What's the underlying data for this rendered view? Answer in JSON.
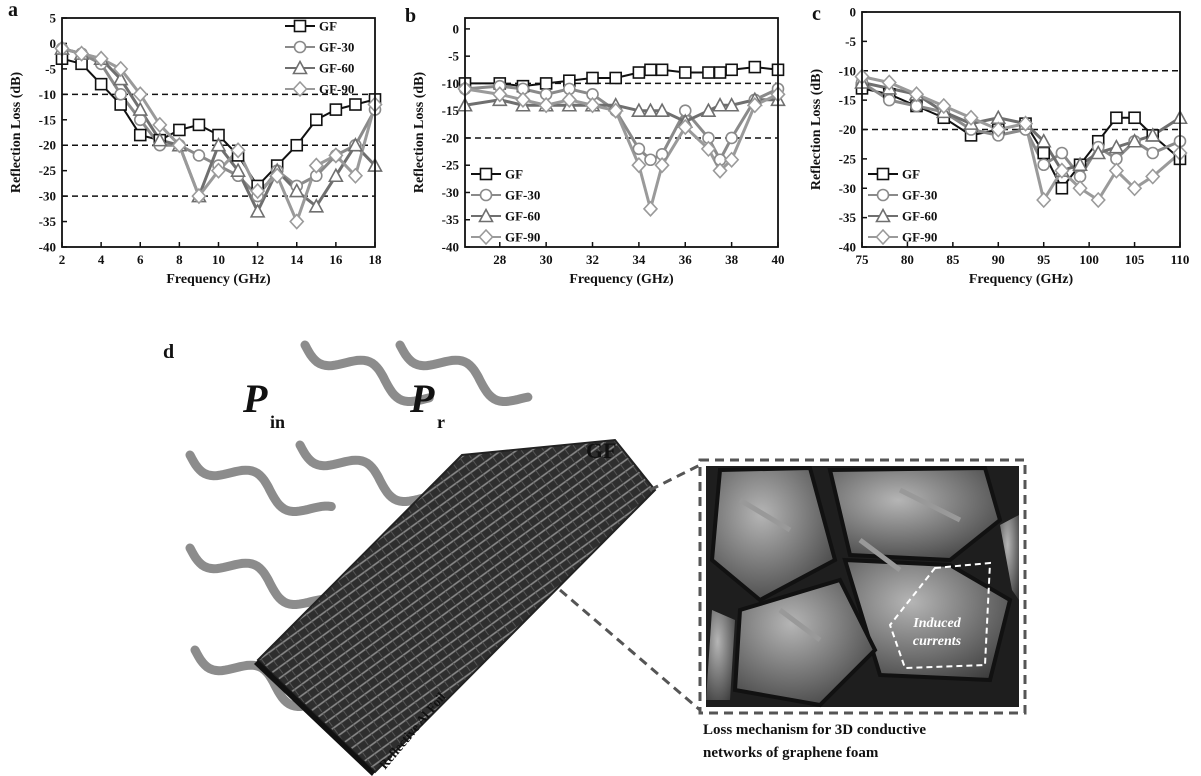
{
  "chart_data": [
    {
      "type": "line",
      "panel": "a",
      "xlabel": "Frequency (GHz)",
      "ylabel": "Reflection Loss (dB)",
      "x": [
        2,
        3,
        4,
        5,
        6,
        7,
        8,
        9,
        10,
        11,
        12,
        13,
        14,
        15,
        16,
        17,
        18
      ],
      "xlim": [
        2,
        18
      ],
      "xticks": [
        2,
        4,
        6,
        8,
        10,
        12,
        14,
        16,
        18
      ],
      "ylim": [
        -40,
        5
      ],
      "yticks": [
        -40,
        -35,
        -30,
        -25,
        -20,
        -15,
        -10,
        -5,
        0,
        5
      ],
      "ref_lines": [
        -10,
        -20,
        -30
      ],
      "legend": "upper right",
      "series": [
        {
          "name": "GF",
          "color": "#111111",
          "marker": "square",
          "values": [
            -3,
            -4,
            -8,
            -12,
            -18,
            -19,
            -17,
            -16,
            -18,
            -22,
            -28,
            -24,
            -20,
            -15,
            -13,
            -12,
            -11
          ]
        },
        {
          "name": "GF-30",
          "color": "#8a8a8a",
          "marker": "circle",
          "values": [
            -1,
            -2,
            -4,
            -10,
            -15,
            -20,
            -20,
            -22,
            -24,
            -26,
            -30,
            -25,
            -28,
            -26,
            -22,
            -20,
            -13
          ]
        },
        {
          "name": "GF-60",
          "color": "#6f6f6f",
          "marker": "triangle",
          "values": [
            -1,
            -2,
            -3,
            -7,
            -13,
            -19,
            -20,
            -30,
            -20,
            -25,
            -33,
            -25,
            -29,
            -32,
            -26,
            -20,
            -24
          ]
        },
        {
          "name": "GF-90",
          "color": "#9a9a9a",
          "marker": "diamond",
          "values": [
            -1,
            -2,
            -3,
            -5,
            -10,
            -16,
            -20,
            -30,
            -25,
            -21,
            -29,
            -26,
            -35,
            -24,
            -22,
            -26,
            -12
          ]
        }
      ]
    },
    {
      "type": "line",
      "panel": "b",
      "xlabel": "Frequency (GHz)",
      "ylabel": "Reflection Loss (dB)",
      "x": [
        26.5,
        28,
        29,
        30,
        31,
        32,
        33,
        34,
        34.5,
        35,
        36,
        37,
        37.5,
        38,
        39,
        40
      ],
      "xlim": [
        26.5,
        40
      ],
      "xticks": [
        28,
        30,
        32,
        34,
        36,
        38,
        40
      ],
      "ylim": [
        -40,
        2
      ],
      "yticks": [
        -40,
        -35,
        -30,
        -25,
        -20,
        -15,
        -10,
        -5,
        0
      ],
      "ref_lines": [
        -10,
        -20
      ],
      "legend": "lower left",
      "series": [
        {
          "name": "GF",
          "color": "#111111",
          "marker": "square",
          "values": [
            -10,
            -10,
            -10.5,
            -10,
            -9.5,
            -9,
            -9,
            -8,
            -7.5,
            -7.5,
            -8,
            -8,
            -8,
            -7.5,
            -7,
            -7.5
          ]
        },
        {
          "name": "GF-30",
          "color": "#8a8a8a",
          "marker": "circle",
          "values": [
            -11,
            -10.5,
            -11,
            -12,
            -11,
            -12,
            -15,
            -22,
            -24,
            -23,
            -15,
            -20,
            -24,
            -20,
            -13,
            -11
          ]
        },
        {
          "name": "GF-60",
          "color": "#6f6f6f",
          "marker": "triangle",
          "values": [
            -14,
            -13,
            -14,
            -14,
            -14,
            -14,
            -14,
            -15,
            -15,
            -15,
            -17,
            -15,
            -14,
            -14,
            -13,
            -13
          ]
        },
        {
          "name": "GF-90",
          "color": "#9a9a9a",
          "marker": "diamond",
          "values": [
            -11,
            -12,
            -13,
            -14,
            -13,
            -14,
            -15,
            -25,
            -33,
            -25,
            -18,
            -22,
            -26,
            -24,
            -14,
            -12
          ]
        }
      ]
    },
    {
      "type": "line",
      "panel": "c",
      "xlabel": "Frequency (GHz)",
      "ylabel": "Reflection Loss (dB)",
      "x": [
        75,
        78,
        81,
        84,
        87,
        90,
        93,
        95,
        97,
        99,
        101,
        103,
        105,
        107,
        110
      ],
      "xlim": [
        75,
        110
      ],
      "xticks": [
        75,
        80,
        85,
        90,
        95,
        100,
        105,
        110
      ],
      "ylim": [
        -40,
        0
      ],
      "yticks": [
        -40,
        -35,
        -30,
        -25,
        -20,
        -15,
        -10,
        -5,
        0
      ],
      "ref_lines": [
        -10,
        -20
      ],
      "legend": "lower left",
      "series": [
        {
          "name": "GF",
          "color": "#111111",
          "marker": "square",
          "values": [
            -13,
            -14,
            -16,
            -18,
            -21,
            -20,
            -19,
            -24,
            -30,
            -26,
            -22,
            -18,
            -18,
            -21,
            -25
          ]
        },
        {
          "name": "GF-30",
          "color": "#8a8a8a",
          "marker": "circle",
          "values": [
            -12,
            -15,
            -16,
            -17,
            -20,
            -21,
            -20,
            -26,
            -24,
            -28,
            -23,
            -25,
            -22,
            -24,
            -22
          ]
        },
        {
          "name": "GF-60",
          "color": "#6f6f6f",
          "marker": "triangle",
          "values": [
            -12,
            -13,
            -14,
            -17,
            -19,
            -18,
            -19,
            -22,
            -27,
            -26,
            -24,
            -23,
            -22,
            -21,
            -18
          ]
        },
        {
          "name": "GF-90",
          "color": "#9a9a9a",
          "marker": "diamond",
          "values": [
            -11,
            -12,
            -14,
            -16,
            -18,
            -20,
            -19,
            -32,
            -27,
            -30,
            -32,
            -27,
            -30,
            -28,
            -24
          ]
        }
      ]
    }
  ],
  "panel_d": {
    "label": "d",
    "incident": {
      "symbol": "P",
      "subscript": "in"
    },
    "reflected": {
      "symbol": "P",
      "subscript": "r"
    },
    "material": "GF",
    "substrate": "Reflective Al Foil",
    "inset_label": [
      "Induced",
      "currents"
    ],
    "caption": [
      "Loss mechanism for 3D conductive",
      "networks of graphene foam"
    ]
  }
}
